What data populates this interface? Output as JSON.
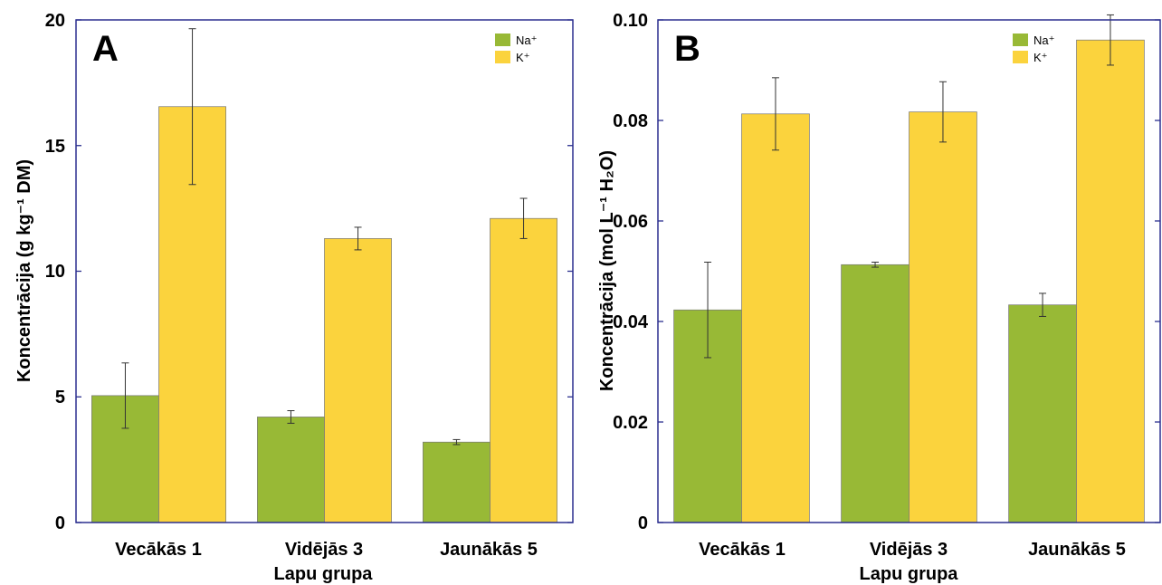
{
  "colors": {
    "na": "#98b936",
    "k": "#fbd33d",
    "frame": "#2b2f8f"
  },
  "chart_data": [
    {
      "type": "bar",
      "panel": "A",
      "categories": [
        "Vecākās 1",
        "Vidējās 3",
        "Jaunākās 5"
      ],
      "series": [
        {
          "name": "Na⁺",
          "values": [
            5.05,
            4.2,
            3.2
          ],
          "err": [
            1.3,
            0.25,
            0.1
          ]
        },
        {
          "name": "K⁺",
          "values": [
            16.55,
            11.3,
            12.1
          ],
          "err": [
            3.1,
            0.45,
            0.8
          ]
        }
      ],
      "xlabel": "Lapu grupa",
      "ylabel": "Koncentrācija  (g kg⁻¹ DM)",
      "ylim": [
        0,
        20
      ],
      "yticks": [
        "0",
        "5",
        "10",
        "15",
        "20"
      ],
      "legend": "top-right",
      "grid": false
    },
    {
      "type": "bar",
      "panel": "B",
      "categories": [
        "Vecākās 1",
        "Vidējās 3",
        "Jaunākās 5"
      ],
      "series": [
        {
          "name": "Na⁺",
          "values": [
            0.0423,
            0.0513,
            0.0433
          ],
          "err": [
            0.0095,
            0.0005,
            0.0023
          ]
        },
        {
          "name": "K⁺",
          "values": [
            0.0813,
            0.0817,
            0.096
          ],
          "err": [
            0.0072,
            0.006,
            0.005
          ]
        }
      ],
      "xlabel": "Lapu grupa",
      "ylabel": "Koncentrācija  (mol L⁻¹ H₂O)",
      "ylim": [
        0,
        0.1
      ],
      "yticks": [
        "0",
        "0.02",
        "0.04",
        "0.06",
        "0.08",
        "0.10"
      ],
      "legend": "top-right",
      "grid": false
    }
  ]
}
